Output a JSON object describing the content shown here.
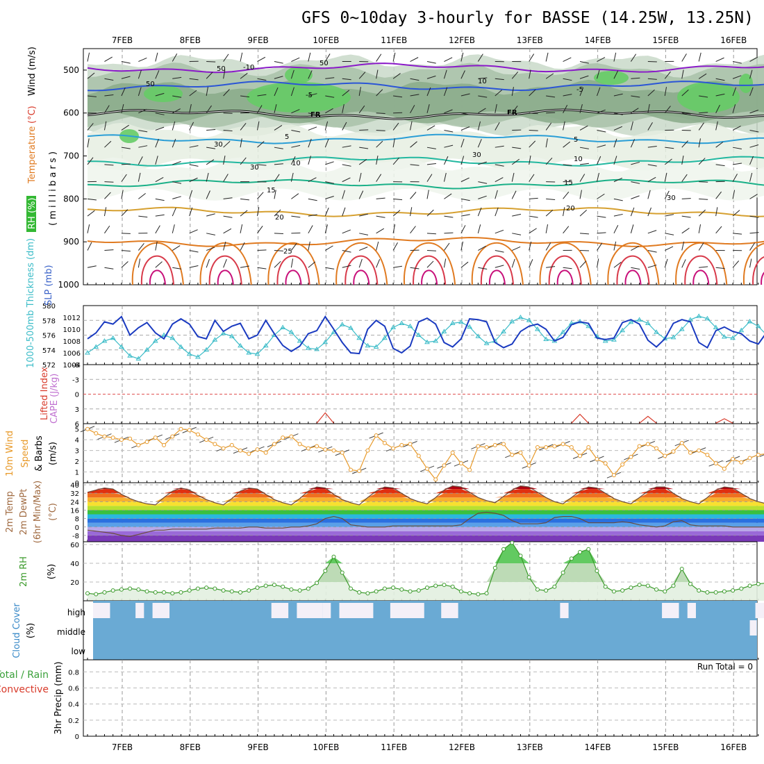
{
  "title": "GFS 0~10day 3-hourly for BASSE (14.25W, 13.25N)",
  "dates": [
    "7FEB",
    "8FEB",
    "9FEB",
    "10FEB",
    "11FEB",
    "12FEB",
    "13FEB",
    "14FEB",
    "15FEB",
    "16FEB"
  ],
  "colors": {
    "temp_contour": "#e07a20",
    "wind_contour": "#2b55d6",
    "thickness": "#1a3ac0",
    "slp": "#3cbcc8",
    "lifted_index": "#d83a2a",
    "wind_speed": "#e89a2a",
    "rh": "#3a9a2a",
    "cloud": "#6aaad4",
    "freezing": "#000000"
  },
  "chart_data": [
    {
      "type": "contour",
      "panel": "upper-air",
      "ylabel_parts": [
        "RH (%)",
        "Temperature",
        "(°C)",
        "Wind (m/s)"
      ],
      "ylabel_units": "( m i l l i b a r s )",
      "yticks": [
        "500",
        "600",
        "700",
        "800",
        "900",
        "1000"
      ],
      "ylim": [
        450,
        1000
      ],
      "contour_labels": [
        "-10",
        "-5",
        "FR",
        "FR",
        "5",
        "10",
        "15",
        "20",
        "25",
        "-5",
        "5",
        "10",
        "15",
        "20",
        "10",
        "50",
        "50",
        "50",
        "30",
        "30",
        "30",
        "30"
      ],
      "isotherms": [
        {
          "label": "-10",
          "p": 495
        },
        {
          "label": "-5",
          "p": 537
        },
        {
          "label": "FR",
          "p": 603
        },
        {
          "label": "5",
          "p": 660
        },
        {
          "label": "10",
          "p": 712
        },
        {
          "label": "15",
          "p": 765
        },
        {
          "label": "20",
          "p": 830
        },
        {
          "label": "25",
          "p": 900
        }
      ]
    },
    {
      "type": "line",
      "panel": "thickness-slp",
      "ylabel_left": "1000-500mb Thickness (dm)",
      "ylabel_right": "SLP (mb)",
      "yticks_left": [
        "580",
        "578",
        "576",
        "574",
        "572"
      ],
      "yticks_right": [
        "1012",
        "1010",
        "1008",
        "1006",
        "1004"
      ],
      "ylim_left": [
        572,
        580
      ],
      "ylim_right": [
        1004,
        1014
      ],
      "series": [
        {
          "name": "1000-500mb Thickness",
          "values": [
            575.5,
            576.3,
            577.8,
            577.5,
            578.5,
            576,
            577,
            577.7,
            576.3,
            575.5,
            577.5,
            578.2,
            577.5,
            575.8,
            575.5,
            578,
            576.5,
            577.2,
            577.6,
            575.5,
            576,
            578,
            576.2,
            574.6,
            573.8,
            574.5,
            576.2,
            576.6,
            578.5,
            576.8,
            575,
            573.6,
            573.5,
            576.8,
            578,
            577.2,
            574.2,
            573.6,
            574.5,
            577.8,
            578.3,
            577.5,
            575,
            574.4,
            575.5,
            578.2,
            578.1,
            577.8,
            575,
            574.3,
            574.8,
            576.5,
            577.2,
            577.5,
            576.8,
            575.2,
            575.7,
            577.4,
            577.8,
            577.6,
            575.6,
            575.4,
            575.6,
            577.7,
            578.1,
            577.5,
            575.3,
            574.4,
            575.5,
            577.6,
            578.1,
            577.8,
            575,
            574.3,
            576.6,
            577.1,
            576.5,
            576.2,
            575.2,
            574.8,
            576.4
          ]
        },
        {
          "name": "SLP",
          "values": [
            1006,
            1007,
            1008,
            1008.5,
            1007,
            1005.5,
            1005,
            1006.5,
            1008,
            1009,
            1008.5,
            1007,
            1005.8,
            1005.3,
            1006.5,
            1008.2,
            1009.3,
            1008.8,
            1007.2,
            1006,
            1005.8,
            1007.2,
            1009,
            1010.3,
            1009.5,
            1008,
            1006.8,
            1006.6,
            1007.8,
            1009.5,
            1010.8,
            1010.2,
            1008.5,
            1007.2,
            1007,
            1008.5,
            1010.3,
            1011,
            1010.5,
            1009,
            1007.8,
            1008,
            1009.6,
            1011,
            1011.2,
            1010.4,
            1008.8,
            1007.6,
            1008,
            1009.6,
            1011.3,
            1012,
            1011.5,
            1010,
            1008.3,
            1008,
            1009.5,
            1011,
            1011.3,
            1010.5,
            1008.8,
            1008,
            1008.2,
            1009.8,
            1011.2,
            1011.6,
            1011,
            1009.5,
            1008.4,
            1008.6,
            1010,
            1011.6,
            1012.2,
            1011.8,
            1010.3,
            1008.7,
            1008.5,
            1009.8,
            1011.3,
            1010.5,
            1009
          ]
        }
      ]
    },
    {
      "type": "line",
      "panel": "instability",
      "ylabel_left": "Lifted Index",
      "ylabel_right": "CAPE (J/kg)",
      "yticks": [
        "-6",
        "-3",
        "0",
        "3",
        "6"
      ],
      "ylim": [
        -6,
        6
      ],
      "series": [
        {
          "name": "Lifted Index",
          "segments": [
            {
              "x": [
                27,
                28,
                29
              ],
              "y": [
                5.9,
                3.8,
                5.9
              ]
            },
            {
              "x": [
                57,
                58,
                59
              ],
              "y": [
                5.9,
                4.1,
                5.9
              ]
            },
            {
              "x": [
                65,
                66,
                67
              ],
              "y": [
                5.9,
                4.5,
                5.9
              ]
            },
            {
              "x": [
                74,
                75,
                76
              ],
              "y": [
                5.9,
                5.0,
                5.9
              ]
            }
          ]
        }
      ]
    },
    {
      "type": "line",
      "panel": "10m-wind",
      "ylabel": "10m Wind Speed & Barbs (m/s)",
      "ylabel_parts": [
        "10m Wind",
        "Speed",
        "& Barbs",
        "(m/s)"
      ],
      "yticks": [
        "5",
        "4",
        "3",
        "2",
        "1",
        "0"
      ],
      "ylim": [
        0,
        5.5
      ],
      "series": [
        {
          "name": "10m Wind Speed",
          "values": [
            5,
            4.6,
            4.3,
            4.2,
            4,
            4.1,
            3.5,
            3.8,
            4.2,
            3.5,
            4.3,
            5,
            4.9,
            4.5,
            4,
            3.6,
            3.2,
            3.5,
            3,
            2.7,
            3.1,
            2.8,
            3.6,
            4.2,
            4.3,
            3.6,
            3.2,
            3.4,
            3.1,
            3,
            2.8,
            1.2,
            1.1,
            3,
            4.4,
            3.7,
            3.2,
            3.5,
            3.6,
            2.5,
            1.3,
            0.3,
            1.6,
            2.8,
            1.8,
            1.2,
            3.4,
            3.3,
            3.5,
            3.6,
            2.6,
            2.8,
            1.6,
            3.3,
            3.3,
            3.4,
            3.6,
            3.3,
            2.5,
            3.3,
            2.2,
            1.8,
            0.7,
            1.7,
            2.4,
            3.4,
            3.6,
            3.2,
            2.5,
            2.9,
            3.7,
            2.8,
            3,
            2.6,
            1.8,
            1.3,
            2.2,
            1.9,
            2.3,
            2.6,
            2.7,
            1.9,
            1.1,
            0.9,
            1.4,
            3.2,
            3.3,
            2.8,
            3.5,
            2.6,
            2.5,
            1.8,
            1.8,
            2.1,
            1.7,
            1.6
          ]
        }
      ]
    },
    {
      "type": "area",
      "panel": "2m-temperature",
      "ylabel_parts": [
        "2m Temp",
        "2m DewPt",
        "(6hr Min/Max)",
        "(°C)"
      ],
      "yticks": [
        "40",
        "32",
        "24",
        "16",
        "8",
        "0",
        "-8"
      ],
      "ylim": [
        -14,
        42
      ],
      "series": [
        {
          "name": "2m Temp",
          "values": [
            33,
            35,
            37,
            36,
            31,
            27,
            24,
            22,
            21,
            28,
            34,
            37,
            35,
            30,
            26,
            23,
            21,
            27,
            34,
            37,
            36,
            31,
            26,
            23,
            21,
            27,
            34,
            38,
            37,
            31,
            26,
            23,
            21,
            28,
            34,
            38,
            37,
            32,
            27,
            24,
            22,
            28,
            35,
            39,
            38,
            33,
            28,
            25,
            23,
            29,
            35,
            39,
            38,
            33,
            28,
            24,
            22,
            28,
            34,
            38,
            37,
            32,
            27,
            24,
            22,
            28,
            34,
            38,
            38,
            32,
            27,
            24,
            22,
            28,
            35,
            38,
            37,
            32,
            27,
            24,
            22
          ]
        },
        {
          "name": "2m DewPt",
          "values": [
            -3,
            -4,
            -5,
            -6,
            -8,
            -9,
            -7,
            -5,
            -3,
            -3,
            -2,
            -2,
            -2,
            -2,
            -2,
            -1,
            -1,
            -1,
            -1,
            0,
            0,
            -1,
            -1,
            -1,
            0,
            0,
            1,
            3,
            8,
            10,
            8,
            2,
            1,
            0,
            0,
            0,
            1,
            1,
            1,
            1,
            1,
            1,
            1,
            1,
            2,
            8,
            13,
            14,
            13,
            11,
            6,
            3,
            3,
            3,
            4,
            9,
            10,
            10,
            8,
            4,
            4,
            4,
            4,
            5,
            4,
            2,
            1,
            0,
            1,
            5,
            6,
            2,
            1,
            1,
            1,
            1,
            0,
            0,
            0,
            0,
            0
          ]
        }
      ]
    },
    {
      "type": "area",
      "panel": "2m-rh",
      "ylabel": "2m RH",
      "yunit": "(%)",
      "yticks": [
        "60",
        "40",
        "20"
      ],
      "ylim": [
        0,
        63
      ],
      "series": [
        {
          "name": "2m RH",
          "values": [
            8,
            7,
            9,
            11,
            12,
            13,
            12,
            10,
            9,
            9,
            8,
            9,
            11,
            13,
            14,
            13,
            11,
            10,
            9,
            11,
            14,
            16,
            17,
            15,
            12,
            11,
            13,
            19,
            32,
            47,
            30,
            13,
            9,
            8,
            10,
            13,
            14,
            12,
            10,
            11,
            14,
            16,
            17,
            15,
            10,
            8,
            7,
            8,
            35,
            55,
            62,
            48,
            25,
            12,
            11,
            15,
            30,
            45,
            52,
            55,
            32,
            15,
            10,
            11,
            14,
            17,
            16,
            12,
            10,
            16,
            34,
            18,
            11,
            9,
            9,
            10,
            11,
            13,
            16,
            18,
            19
          ]
        }
      ]
    },
    {
      "type": "heatmap",
      "panel": "cloud-cover",
      "ylabel": "Cloud Cover",
      "yunit": "(%)",
      "levels": [
        "high",
        "middle",
        "low"
      ]
    },
    {
      "type": "bar",
      "panel": "precipitation",
      "ylabel": "3hr Precip (mm)",
      "legend_lines": [
        "Total / Rain",
        "Convective"
      ],
      "yticks": [
        "0.8",
        "0.6",
        "0.4",
        "0.2",
        "0"
      ],
      "ylim": [
        0,
        0.95
      ],
      "annotation": "Run Total = 0",
      "values": []
    }
  ]
}
